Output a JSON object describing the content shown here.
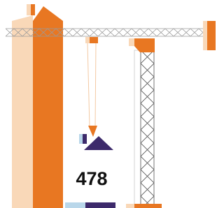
{
  "label": "478"
}
